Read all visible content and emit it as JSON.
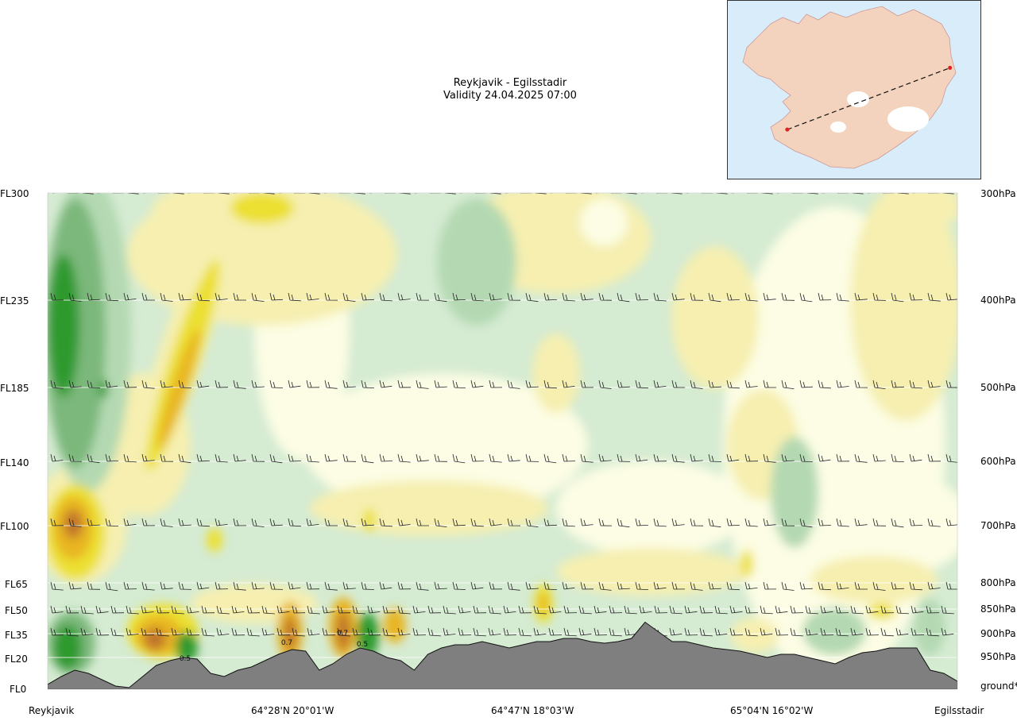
{
  "header": {
    "title": "Reykjavik - Egilsstadir",
    "validity": "Validity 24.04.2025 07:00"
  },
  "colors": {
    "ground": "#7f7f7f",
    "green_dark": "#2e9a2e",
    "green_mid": "#7bb87b",
    "green_light": "#b4d9b2",
    "green_pale": "#d5ebd2",
    "cream": "#fcfde4",
    "yellow_pale": "#f6efb0",
    "yellow": "#ece033",
    "orange": "#e8b521",
    "brown": "#c0742a",
    "map_sea": "#d8edf9",
    "map_land": "#f3d3bd",
    "route_marker": "#e02020"
  },
  "chart_data": {
    "type": "heatmap",
    "title": "Reykjavik - Egilsstadir",
    "subtitle": "Validity 24.04.2025 07:00",
    "y_levels_left": [
      {
        "label": "FL300",
        "pressure": "300hPa",
        "fl": 300
      },
      {
        "label": "FL235",
        "pressure": "400hPa",
        "fl": 235
      },
      {
        "label": "FL185",
        "pressure": "500hPa",
        "fl": 185
      },
      {
        "label": "FL140",
        "pressure": "600hPa",
        "fl": 140
      },
      {
        "label": "FL100",
        "pressure": "700hPa",
        "fl": 100
      },
      {
        "label": "FL65",
        "pressure": "800hPa",
        "fl": 65
      },
      {
        "label": "FL50",
        "pressure": "850hPa",
        "fl": 50
      },
      {
        "label": "FL35",
        "pressure": "900hPa",
        "fl": 35
      },
      {
        "label": "FL20",
        "pressure": "950hPa",
        "fl": 20
      },
      {
        "label": "FL0",
        "pressure": "ground*",
        "fl": 0
      }
    ],
    "x_labels": [
      {
        "label": "Reykjavik",
        "pos": 0.0
      },
      {
        "label": "64°28'N 20°01'W",
        "pos": 0.25
      },
      {
        "label": "64°47'N 18°03'W",
        "pos": 0.5
      },
      {
        "label": "65°04'N 16°02'W",
        "pos": 0.75
      },
      {
        "label": "Egilsstadir",
        "pos": 1.0
      }
    ],
    "terrain_fl": [
      3,
      8,
      12,
      10,
      6,
      2,
      1,
      8,
      15,
      18,
      20,
      19,
      10,
      8,
      12,
      14,
      18,
      22,
      25,
      24,
      12,
      16,
      22,
      26,
      24,
      20,
      18,
      12,
      22,
      26,
      28,
      28,
      30,
      28,
      26,
      28,
      30,
      30,
      32,
      32,
      30,
      29,
      30,
      32,
      42,
      36,
      30,
      30,
      28,
      26,
      25,
      24,
      22,
      20,
      22,
      22,
      20,
      18,
      16,
      20,
      23,
      24,
      26,
      26,
      26,
      12,
      10,
      5
    ],
    "cell_labels": [
      "0.7",
      "0.7",
      "0.5",
      "0.5"
    ],
    "inset_map": {
      "from": "Reykjavik",
      "to": "Egilsstadir",
      "route": [
        [
          0.237,
          0.722
        ],
        [
          0.877,
          0.378
        ]
      ]
    }
  }
}
